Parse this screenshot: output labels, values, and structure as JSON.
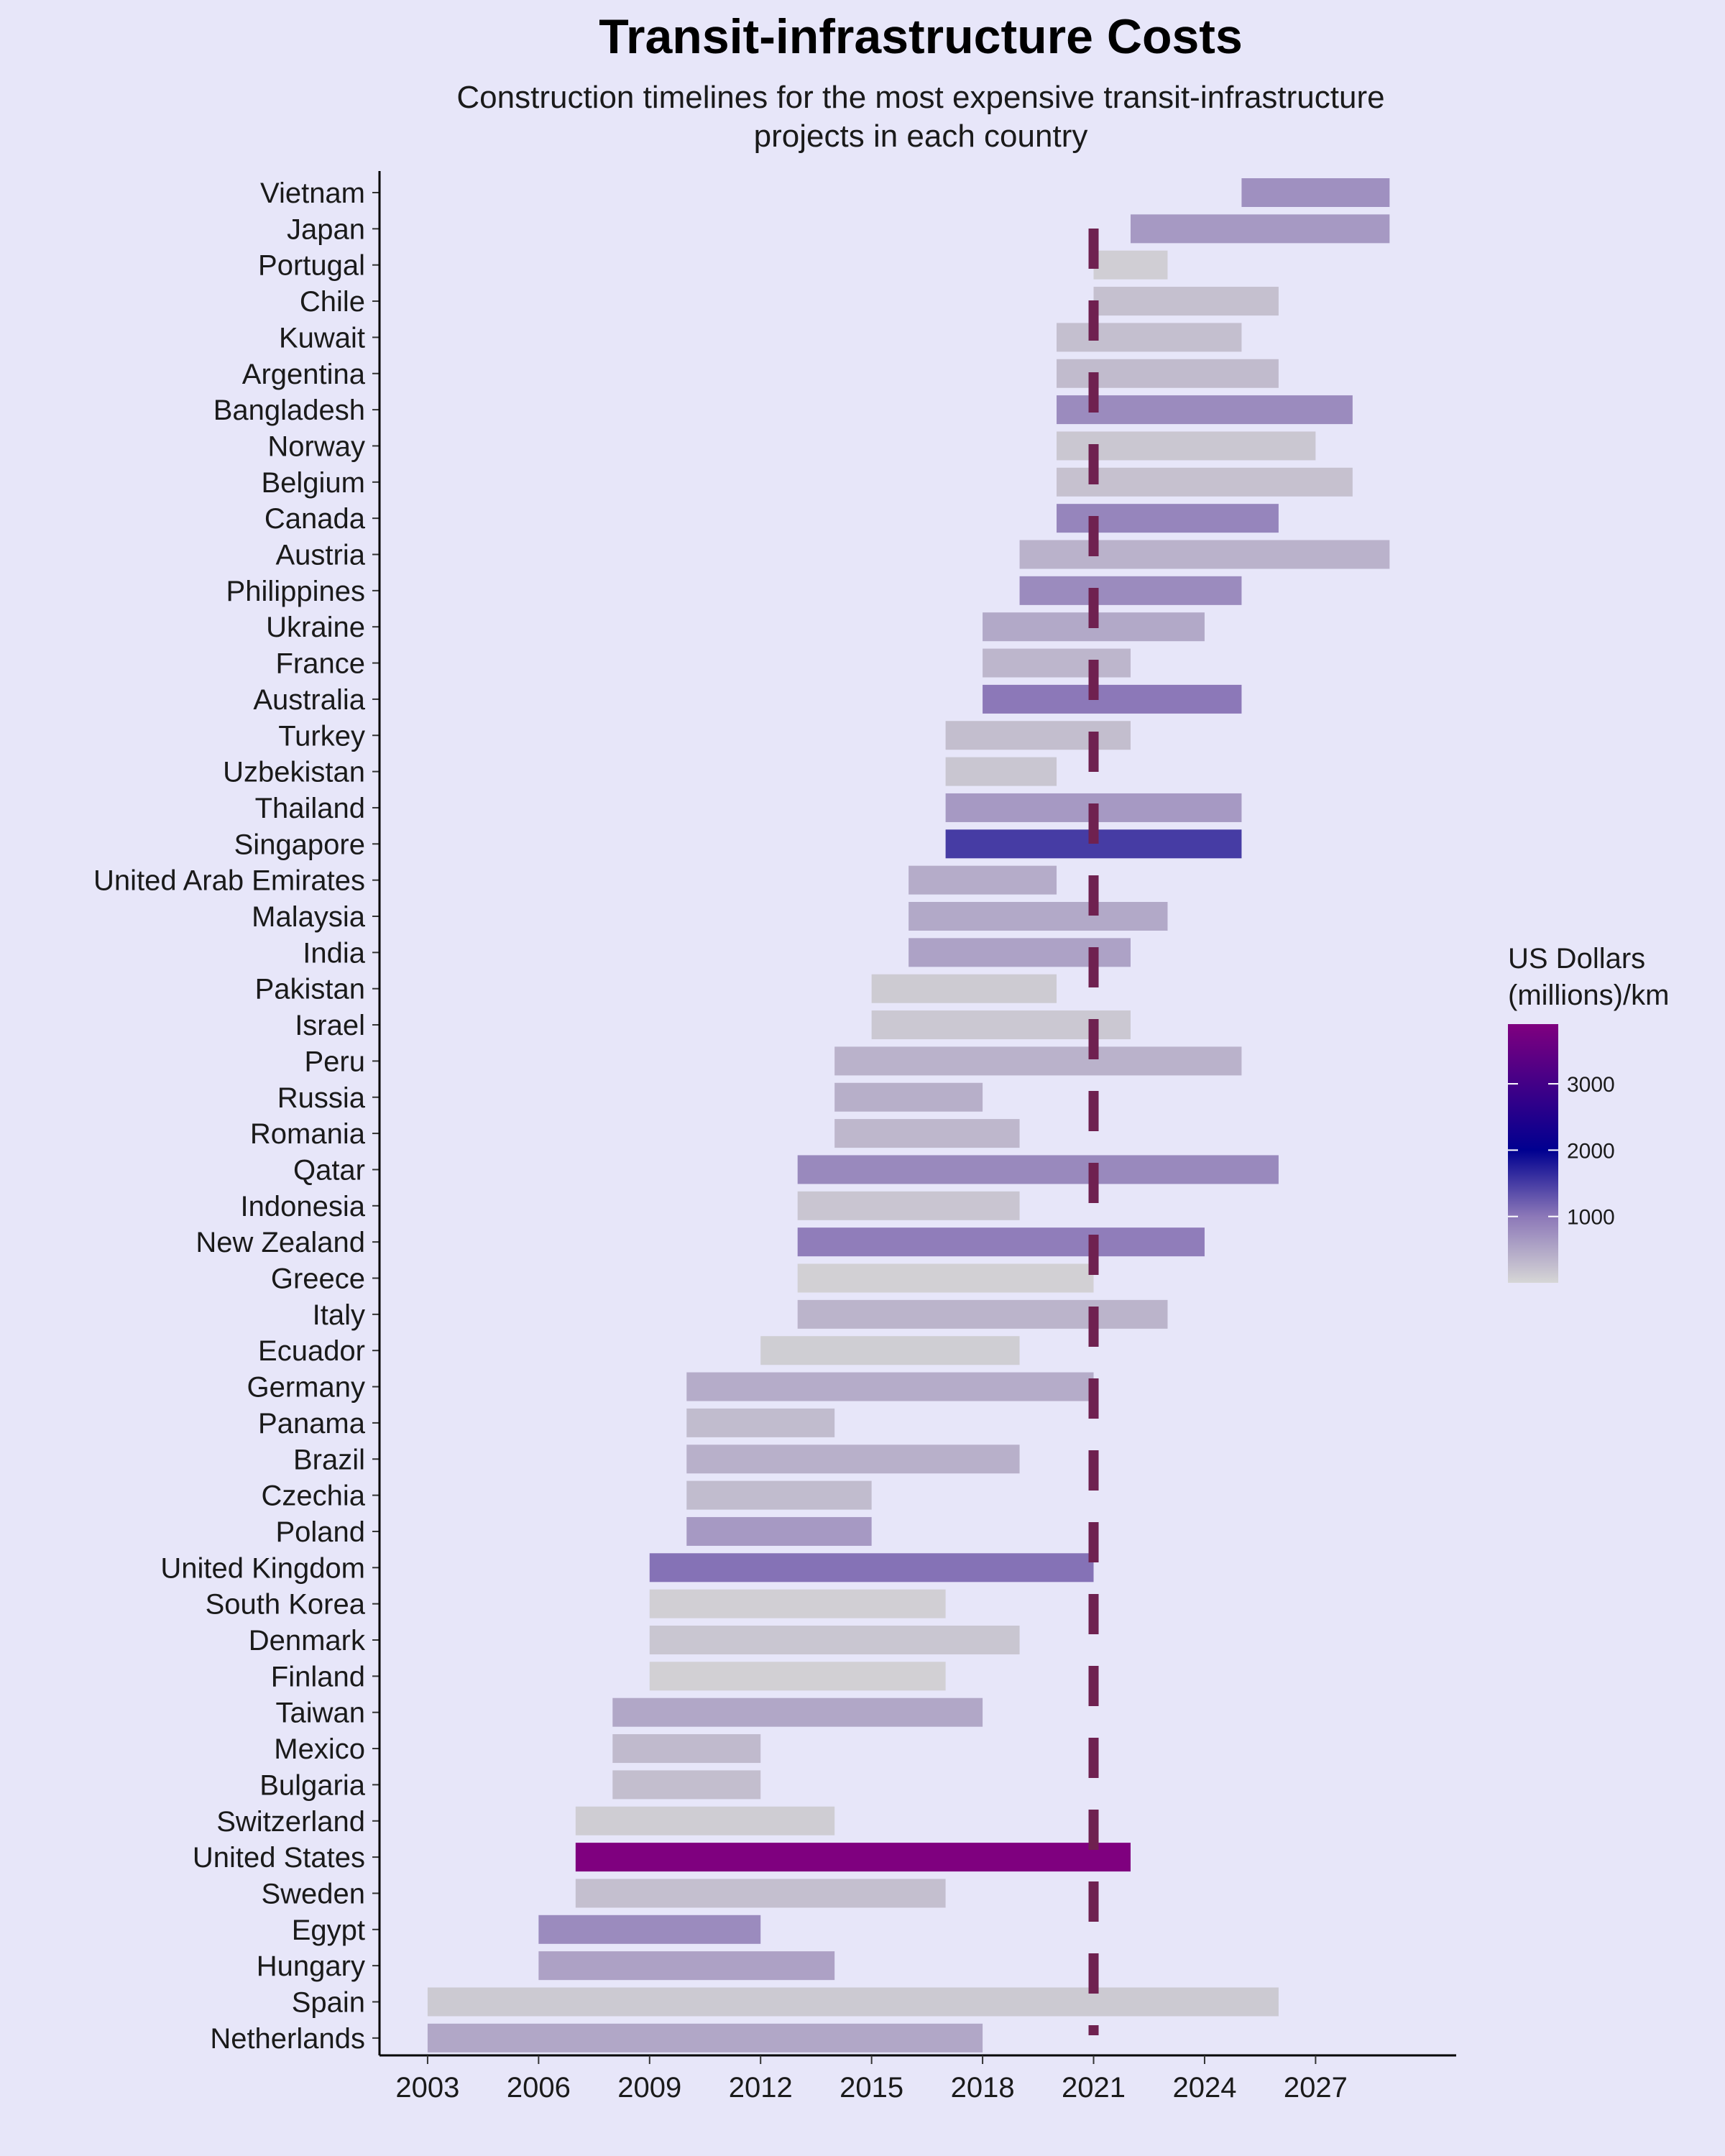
{
  "chart_data": {
    "type": "gantt",
    "title": "Transit-infrastructure Costs",
    "subtitle": [
      "Construction timelines for the most expensive transit-infrastructure",
      "projects in each country"
    ],
    "reference_year": 2021,
    "reference_line_color": "#6f2150",
    "x_ticks": [
      2003,
      2006,
      2009,
      2012,
      2015,
      2018,
      2021,
      2024,
      2027
    ],
    "xlim": [
      2001.7,
      2030.8
    ],
    "legend": {
      "title": [
        "US Dollars",
        "(millions)/km"
      ],
      "ticks": [
        1000,
        2000,
        3000
      ],
      "range": [
        0,
        3900
      ],
      "color_stops": [
        {
          "value": 0,
          "color": "#d6d6d6"
        },
        {
          "value": 1000,
          "color": "#8c78b8"
        },
        {
          "value": 2000,
          "color": "#000090"
        },
        {
          "value": 3900,
          "color": "#7f007f"
        }
      ]
    },
    "projects": [
      {
        "country": "Vietnam",
        "start": 2025,
        "end": 2029,
        "cost": 750
      },
      {
        "country": "Japan",
        "start": 2022,
        "end": 2029,
        "cost": 650
      },
      {
        "country": "Portugal",
        "start": 2021,
        "end": 2023,
        "cost": 80
      },
      {
        "country": "Chile",
        "start": 2021,
        "end": 2026,
        "cost": 230
      },
      {
        "country": "Kuwait",
        "start": 2020,
        "end": 2025,
        "cost": 250
      },
      {
        "country": "Argentina",
        "start": 2020,
        "end": 2026,
        "cost": 290
      },
      {
        "country": "Bangladesh",
        "start": 2020,
        "end": 2028,
        "cost": 800
      },
      {
        "country": "Norway",
        "start": 2020,
        "end": 2027,
        "cost": 160
      },
      {
        "country": "Belgium",
        "start": 2020,
        "end": 2028,
        "cost": 220
      },
      {
        "country": "Canada",
        "start": 2020,
        "end": 2026,
        "cost": 860
      },
      {
        "country": "Austria",
        "start": 2019,
        "end": 2029,
        "cost": 380
      },
      {
        "country": "Philippines",
        "start": 2019,
        "end": 2025,
        "cost": 800
      },
      {
        "country": "Ukraine",
        "start": 2018,
        "end": 2024,
        "cost": 480
      },
      {
        "country": "France",
        "start": 2018,
        "end": 2022,
        "cost": 340
      },
      {
        "country": "Australia",
        "start": 2018,
        "end": 2025,
        "cost": 1000
      },
      {
        "country": "Turkey",
        "start": 2017,
        "end": 2022,
        "cost": 260
      },
      {
        "country": "Uzbekistan",
        "start": 2017,
        "end": 2020,
        "cost": 170
      },
      {
        "country": "Thailand",
        "start": 2017,
        "end": 2025,
        "cost": 650
      },
      {
        "country": "Singapore",
        "start": 2017,
        "end": 2025,
        "cost": 1500
      },
      {
        "country": "United Arab Emirates",
        "start": 2016,
        "end": 2020,
        "cost": 450
      },
      {
        "country": "Malaysia",
        "start": 2016,
        "end": 2023,
        "cost": 480
      },
      {
        "country": "India",
        "start": 2016,
        "end": 2022,
        "cost": 550
      },
      {
        "country": "Pakistan",
        "start": 2015,
        "end": 2020,
        "cost": 120
      },
      {
        "country": "Israel",
        "start": 2015,
        "end": 2022,
        "cost": 150
      },
      {
        "country": "Peru",
        "start": 2014,
        "end": 2025,
        "cost": 380
      },
      {
        "country": "Russia",
        "start": 2014,
        "end": 2018,
        "cost": 420
      },
      {
        "country": "Romania",
        "start": 2014,
        "end": 2019,
        "cost": 330
      },
      {
        "country": "Qatar",
        "start": 2013,
        "end": 2026,
        "cost": 820
      },
      {
        "country": "Indonesia",
        "start": 2013,
        "end": 2019,
        "cost": 180
      },
      {
        "country": "New Zealand",
        "start": 2013,
        "end": 2024,
        "cost": 950
      },
      {
        "country": "Greece",
        "start": 2013,
        "end": 2021,
        "cost": 60
      },
      {
        "country": "Italy",
        "start": 2013,
        "end": 2023,
        "cost": 360
      },
      {
        "country": "Ecuador",
        "start": 2012,
        "end": 2019,
        "cost": 90
      },
      {
        "country": "Germany",
        "start": 2010,
        "end": 2021,
        "cost": 450
      },
      {
        "country": "Panama",
        "start": 2010,
        "end": 2014,
        "cost": 280
      },
      {
        "country": "Brazil",
        "start": 2010,
        "end": 2019,
        "cost": 400
      },
      {
        "country": "Czechia",
        "start": 2010,
        "end": 2015,
        "cost": 280
      },
      {
        "country": "Poland",
        "start": 2010,
        "end": 2015,
        "cost": 650
      },
      {
        "country": "United Kingdom",
        "start": 2009,
        "end": 2021,
        "cost": 1050
      },
      {
        "country": "South Korea",
        "start": 2009,
        "end": 2017,
        "cost": 70
      },
      {
        "country": "Denmark",
        "start": 2009,
        "end": 2019,
        "cost": 170
      },
      {
        "country": "Finland",
        "start": 2009,
        "end": 2017,
        "cost": 60
      },
      {
        "country": "Taiwan",
        "start": 2008,
        "end": 2018,
        "cost": 500
      },
      {
        "country": "Mexico",
        "start": 2008,
        "end": 2012,
        "cost": 300
      },
      {
        "country": "Bulgaria",
        "start": 2008,
        "end": 2012,
        "cost": 260
      },
      {
        "country": "Switzerland",
        "start": 2007,
        "end": 2014,
        "cost": 100
      },
      {
        "country": "United States",
        "start": 2007,
        "end": 2022,
        "cost": 3900
      },
      {
        "country": "Sweden",
        "start": 2007,
        "end": 2017,
        "cost": 240
      },
      {
        "country": "Egypt",
        "start": 2006,
        "end": 2012,
        "cost": 800
      },
      {
        "country": "Hungary",
        "start": 2006,
        "end": 2014,
        "cost": 560
      },
      {
        "country": "Spain",
        "start": 2003,
        "end": 2026,
        "cost": 130
      },
      {
        "country": "Netherlands",
        "start": 2003,
        "end": 2018,
        "cost": 500
      }
    ]
  }
}
